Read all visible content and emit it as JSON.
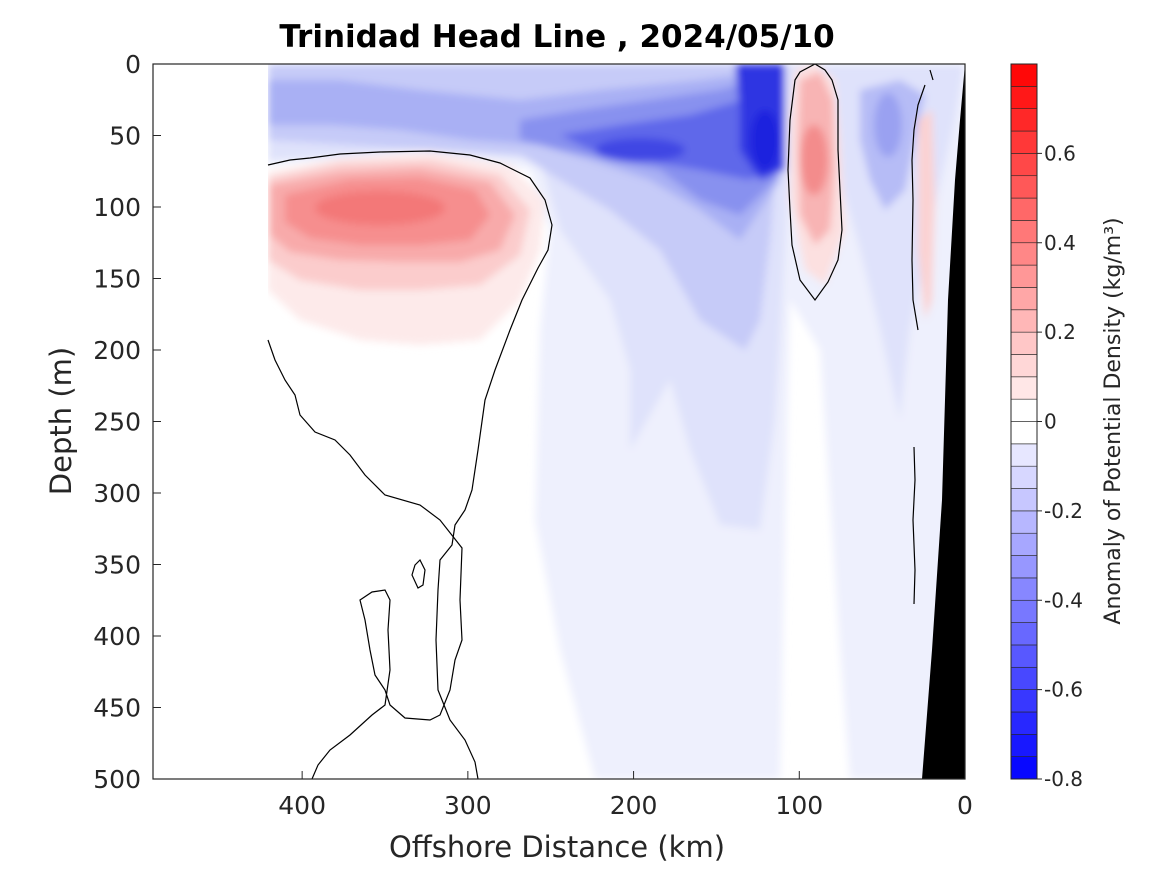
{
  "chart_data": {
    "type": "heatmap",
    "title": "Trinidad Head Line , 2024/05/10",
    "xlabel": "Offshore Distance (km)",
    "ylabel": "Depth (m)",
    "xlim": [
      490,
      0
    ],
    "ylim": [
      0,
      500
    ],
    "x_reversed": true,
    "y_reversed": true,
    "xticks": [
      "400",
      "300",
      "200",
      "100",
      "0"
    ],
    "yticks": [
      "0",
      "50",
      "100",
      "150",
      "200",
      "250",
      "300",
      "350",
      "400",
      "450",
      "500"
    ],
    "colorbar": {
      "label": "Anomaly of Potential Density (kg/m³)",
      "range": [
        -0.8,
        0.8
      ],
      "step": 0.05,
      "ticks": [
        "0.6",
        "0.4",
        "0.2",
        "0",
        "-0.2",
        "-0.4",
        "-0.6",
        "-0.8"
      ],
      "colormap": "blue-white-red"
    },
    "anomaly_features": [
      {
        "label": "positive core",
        "distance_km": [
          340,
          320
        ],
        "depth_m": [
          95,
          100
        ],
        "value": 0.38
      },
      {
        "label": "positive core",
        "distance_km": 90,
        "depth_m": 70,
        "value": 0.26
      },
      {
        "label": "positive core",
        "distance_km": 20,
        "depth_m": 80,
        "value": 0.2
      },
      {
        "label": "negative core",
        "distance_km": 130,
        "depth_m": 50,
        "value": -0.6
      },
      {
        "label": "negative core",
        "distance_km": 200,
        "depth_m": 60,
        "value": -0.5
      },
      {
        "label": "negative core",
        "distance_km": 50,
        "depth_m": 60,
        "value": -0.3
      }
    ],
    "zero_contour": "black line",
    "grid": false
  }
}
